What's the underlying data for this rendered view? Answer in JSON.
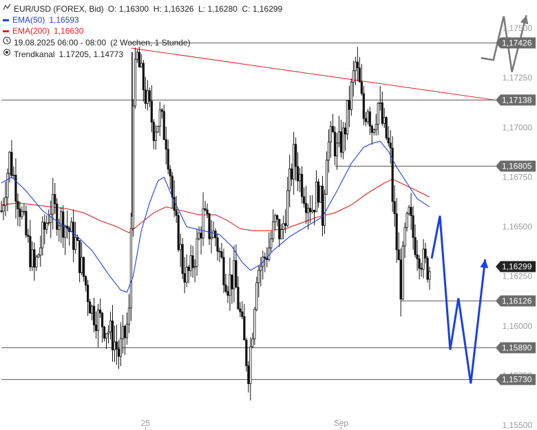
{
  "legend": {
    "symbol": "EUR/USD (FOREX, Bid)",
    "ohlc": "O: 1,16300  H: 1,16326  L: 1,16280  C: 1,16299",
    "ema50_name": "EMA(50)",
    "ema50_value": "1,16593",
    "ema200_name": "EMA(200)",
    "ema200_value": "1,16630",
    "period": "19.08.2025 06:00 - 08:00",
    "period_range": "(2 Wochen, 1 Stunde)",
    "trend_name": "Trendkanal",
    "trend_value": "1.17205, 1.14773"
  },
  "colors": {
    "candle": "#111111",
    "ema50": "#1f3fdc",
    "ema200": "#e02020",
    "trendline": "#e02020",
    "level_line": "#555555",
    "tag_bg": "#6b6b6b",
    "tag_current": "#222222",
    "projection_blue": "#1a3fe0",
    "projection_gray": "#7a7a7a",
    "axis_text": "#9a9a9a"
  },
  "icons": {
    "chart_type": "candlestick-icon",
    "period": "clock-icon",
    "trend": "target-icon"
  },
  "chart_data": {
    "type": "candlestick",
    "series_names": [
      "EUR/USD (FOREX, Bid)",
      "EMA(50)",
      "EMA(200)",
      "Trendkanal"
    ],
    "y_ticks": [
      "1,17500",
      "1,17250",
      "1,17000",
      "1,16750",
      "1,16500",
      "1,16250",
      "1,16000",
      "1,15750",
      "1,15500"
    ],
    "y_tick_values": [
      1.175,
      1.1725,
      1.17,
      1.1675,
      1.165,
      1.1625,
      1.16,
      1.1575,
      1.155
    ],
    "ylim": [
      1.1547,
      1.1768
    ],
    "x_ticks": [
      {
        "label": "25",
        "bar": 70
      },
      {
        "label": "Sep",
        "bar": 165
      }
    ],
    "bar_count": 212,
    "levels": [
      {
        "label": "1,17426",
        "value": 1.17426,
        "from_bar": 62
      },
      {
        "label": "1,17138",
        "value": 1.17138,
        "from_bar": 0
      },
      {
        "label": "1,16805",
        "value": 1.16805,
        "from_bar": 162
      },
      {
        "label": "1,16126",
        "value": 1.16126,
        "from_bar": 194
      },
      {
        "label": "1,15890",
        "value": 1.1589,
        "from_bar": 0
      },
      {
        "label": "1,15730",
        "value": 1.1573,
        "from_bar": 0
      }
    ],
    "current_price": {
      "label": "1,16299",
      "value": 1.16299
    },
    "trendline": {
      "from": {
        "bar": 63,
        "value": 1.174
      },
      "to": {
        "bar": 240,
        "value": 1.17138
      }
    },
    "price_path": [
      [
        0,
        1.1658
      ],
      [
        4,
        1.1685
      ],
      [
        8,
        1.1665
      ],
      [
        12,
        1.1645
      ],
      [
        16,
        1.1628
      ],
      [
        20,
        1.1645
      ],
      [
        24,
        1.166
      ],
      [
        28,
        1.1655
      ],
      [
        32,
        1.165
      ],
      [
        36,
        1.1642
      ],
      [
        40,
        1.1625
      ],
      [
        44,
        1.1608
      ],
      [
        48,
        1.1603
      ],
      [
        52,
        1.1598
      ],
      [
        55,
        1.1592
      ],
      [
        57,
        1.1586
      ],
      [
        60,
        1.1595
      ],
      [
        62,
        1.1605
      ],
      [
        63,
        1.165
      ],
      [
        64,
        1.1718
      ],
      [
        66,
        1.1735
      ],
      [
        68,
        1.1725
      ],
      [
        71,
        1.1712
      ],
      [
        74,
        1.17
      ],
      [
        77,
        1.1705
      ],
      [
        80,
        1.1695
      ],
      [
        82,
        1.1678
      ],
      [
        84,
        1.1652
      ],
      [
        86,
        1.1645
      ],
      [
        88,
        1.163
      ],
      [
        90,
        1.1625
      ],
      [
        92,
        1.1628
      ],
      [
        95,
        1.164
      ],
      [
        98,
        1.1655
      ],
      [
        101,
        1.1648
      ],
      [
        104,
        1.1645
      ],
      [
        107,
        1.1632
      ],
      [
        110,
        1.1622
      ],
      [
        113,
        1.1625
      ],
      [
        116,
        1.1605
      ],
      [
        118,
        1.159
      ],
      [
        120,
        1.1578
      ],
      [
        122,
        1.16
      ],
      [
        124,
        1.1628
      ],
      [
        127,
        1.1632
      ],
      [
        130,
        1.164
      ],
      [
        133,
        1.1652
      ],
      [
        136,
        1.1645
      ],
      [
        139,
        1.1665
      ],
      [
        142,
        1.1685
      ],
      [
        145,
        1.1675
      ],
      [
        148,
        1.1665
      ],
      [
        151,
        1.166
      ],
      [
        154,
        1.167
      ],
      [
        156,
        1.1655
      ],
      [
        158,
        1.169
      ],
      [
        161,
        1.1695
      ],
      [
        163,
        1.1688
      ],
      [
        166,
        1.1695
      ],
      [
        169,
        1.1712
      ],
      [
        172,
        1.1732
      ],
      [
        174,
        1.172
      ],
      [
        176,
        1.1705
      ],
      [
        178,
        1.1712
      ],
      [
        180,
        1.17
      ],
      [
        183,
        1.1712
      ],
      [
        185,
        1.1702
      ],
      [
        187,
        1.1695
      ],
      [
        189,
        1.1685
      ],
      [
        190,
        1.1665
      ],
      [
        192,
        1.164
      ],
      [
        194,
        1.162
      ],
      [
        196,
        1.1645
      ],
      [
        198,
        1.1655
      ],
      [
        200,
        1.1645
      ],
      [
        203,
        1.1637
      ],
      [
        206,
        1.163
      ],
      [
        208,
        1.1629
      ]
    ],
    "ema50_path": [
      [
        0,
        1.1672
      ],
      [
        5,
        1.1675
      ],
      [
        12,
        1.1668
      ],
      [
        20,
        1.1658
      ],
      [
        28,
        1.1652
      ],
      [
        36,
        1.1646
      ],
      [
        44,
        1.1638
      ],
      [
        52,
        1.1626
      ],
      [
        58,
        1.1618
      ],
      [
        61,
        1.1617
      ],
      [
        64,
        1.1625
      ],
      [
        68,
        1.1648
      ],
      [
        72,
        1.1662
      ],
      [
        76,
        1.1673
      ],
      [
        79,
        1.1675
      ],
      [
        83,
        1.1665
      ],
      [
        90,
        1.165
      ],
      [
        98,
        1.1648
      ],
      [
        106,
        1.1646
      ],
      [
        112,
        1.164
      ],
      [
        117,
        1.1632
      ],
      [
        121,
        1.1628
      ],
      [
        126,
        1.1631
      ],
      [
        132,
        1.1638
      ],
      [
        140,
        1.1645
      ],
      [
        148,
        1.165
      ],
      [
        156,
        1.1655
      ],
      [
        163,
        1.1668
      ],
      [
        170,
        1.1682
      ],
      [
        176,
        1.169
      ],
      [
        180,
        1.1692
      ],
      [
        184,
        1.1693
      ],
      [
        188,
        1.1688
      ],
      [
        192,
        1.168
      ],
      [
        197,
        1.1672
      ],
      [
        202,
        1.1664
      ],
      [
        208,
        1.166
      ]
    ],
    "ema200_path": [
      [
        0,
        1.1661
      ],
      [
        8,
        1.1662
      ],
      [
        16,
        1.1661
      ],
      [
        24,
        1.166
      ],
      [
        32,
        1.1659
      ],
      [
        40,
        1.1657
      ],
      [
        48,
        1.1653
      ],
      [
        56,
        1.165
      ],
      [
        62,
        1.1647
      ],
      [
        68,
        1.1652
      ],
      [
        74,
        1.1657
      ],
      [
        80,
        1.166
      ],
      [
        88,
        1.1658
      ],
      [
        96,
        1.1656
      ],
      [
        104,
        1.1656
      ],
      [
        110,
        1.1653
      ],
      [
        116,
        1.1649
      ],
      [
        122,
        1.1648
      ],
      [
        130,
        1.1648
      ],
      [
        138,
        1.1649
      ],
      [
        146,
        1.1652
      ],
      [
        154,
        1.1655
      ],
      [
        162,
        1.1657
      ],
      [
        170,
        1.1661
      ],
      [
        178,
        1.1667
      ],
      [
        186,
        1.1672
      ],
      [
        190,
        1.1674
      ],
      [
        196,
        1.1671
      ],
      [
        202,
        1.1668
      ],
      [
        208,
        1.1665
      ]
    ],
    "projection_gray": [
      [
        233,
        1.1735
      ],
      [
        239,
        1.1734
      ],
      [
        244,
        1.1756
      ],
      [
        248,
        1.1728
      ],
      [
        255,
        1.17565
      ]
    ],
    "projection_blue": [
      [
        209,
        1.1634
      ],
      [
        213,
        1.16555
      ],
      [
        218,
        1.1588
      ],
      [
        222,
        1.1614
      ],
      [
        228,
        1.1571
      ],
      [
        235,
        1.16335
      ]
    ]
  }
}
